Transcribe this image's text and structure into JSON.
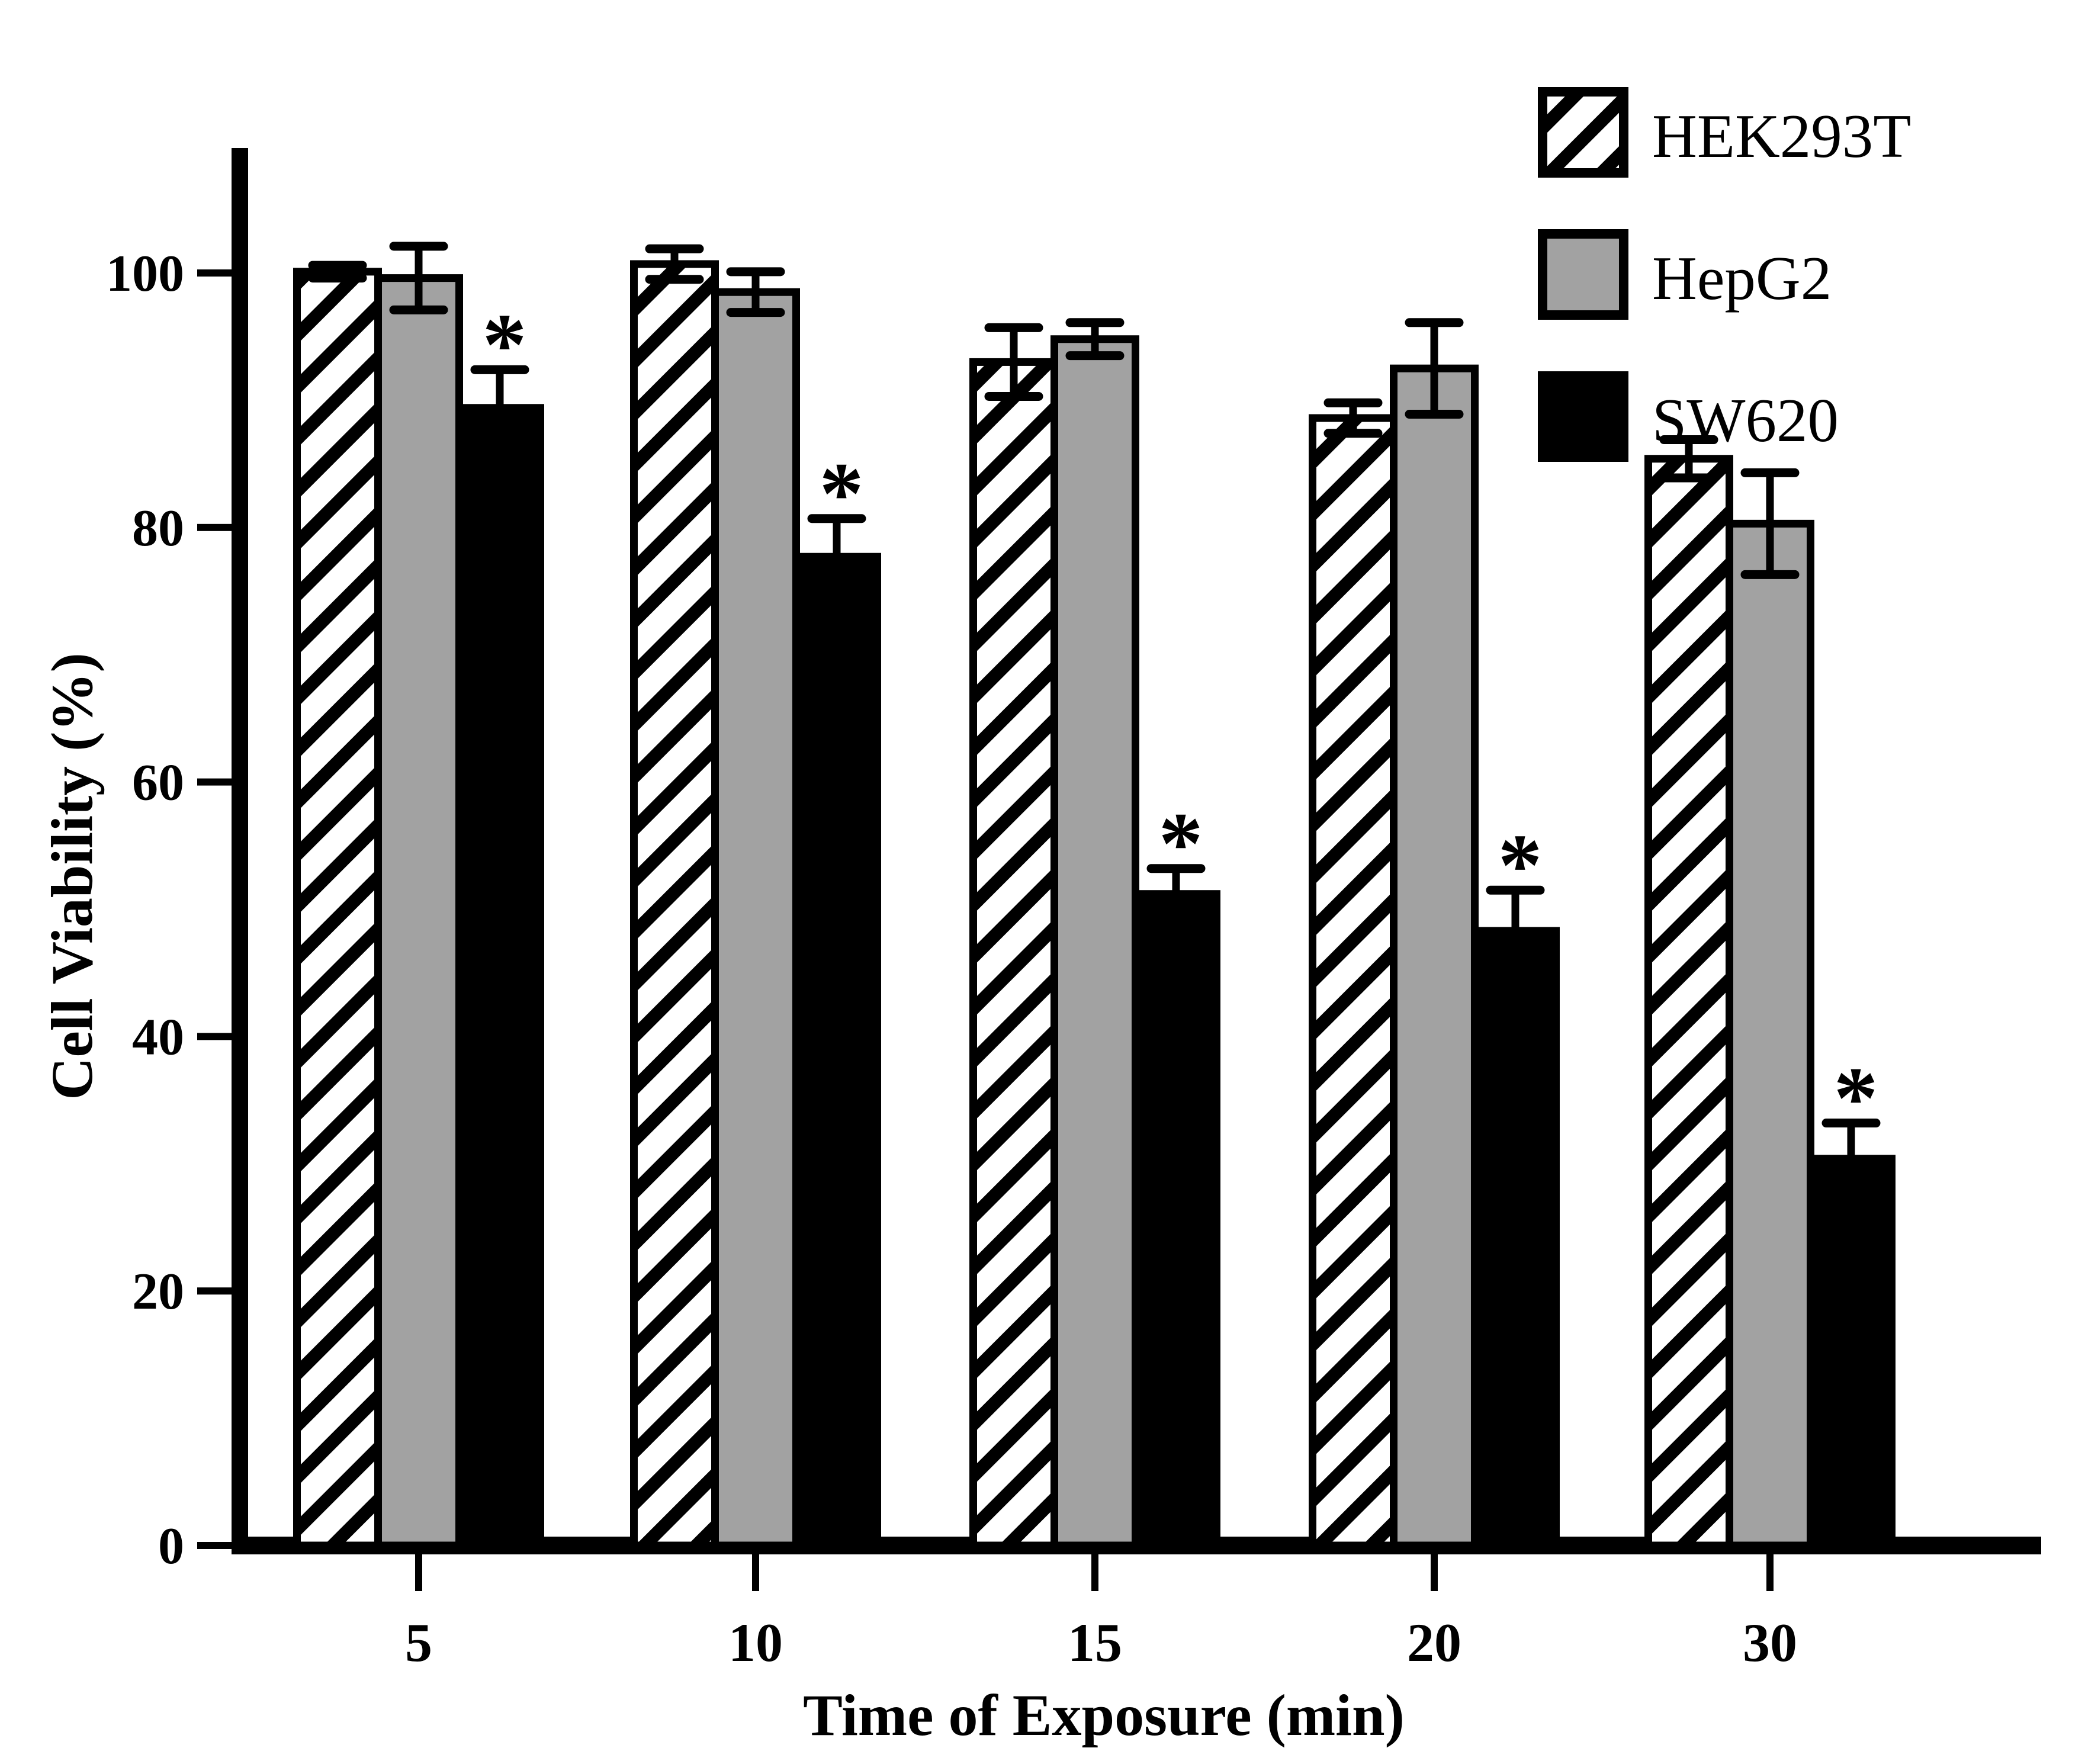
{
  "chart_data": {
    "type": "bar",
    "title": "",
    "xlabel": "Time of Exposure (min)",
    "ylabel": "Cell Viability (%)",
    "categories": [
      "5",
      "10",
      "15",
      "20",
      "30"
    ],
    "series": [
      {
        "name": "HEK293T",
        "style": "hatched",
        "fill": "pattern-diagonal-hatch",
        "values": [
          100.1,
          100.7,
          93.0,
          88.6,
          85.4
        ],
        "errors": [
          0.5,
          1.2,
          2.7,
          1.2,
          1.5
        ],
        "significance": [
          "",
          "",
          "",
          "",
          ""
        ]
      },
      {
        "name": "HepG2",
        "style": "solid",
        "fill": "#A2A2A2",
        "values": [
          99.6,
          98.5,
          94.8,
          92.5,
          80.3
        ],
        "errors": [
          2.5,
          1.6,
          1.3,
          3.6,
          4.0
        ],
        "significance": [
          "",
          "",
          "",
          "",
          ""
        ]
      },
      {
        "name": "SW620",
        "style": "solid",
        "fill": "#000000",
        "values": [
          89.4,
          77.7,
          51.2,
          48.3,
          30.4
        ],
        "errors": [
          3.0,
          3.0,
          2.0,
          3.2,
          2.8
        ],
        "significance": [
          "*",
          "*",
          "*",
          "*",
          "*"
        ]
      }
    ],
    "ylim": [
      0,
      110
    ],
    "yticks": [
      0,
      20,
      40,
      60,
      80,
      100
    ],
    "grid": false,
    "error_bars": "symmetric",
    "significance_marker": "*",
    "legend_position": "top-right",
    "legend_entries": [
      "HEK293T",
      "HepG2",
      "SW620"
    ],
    "axis_color": "#000000"
  }
}
